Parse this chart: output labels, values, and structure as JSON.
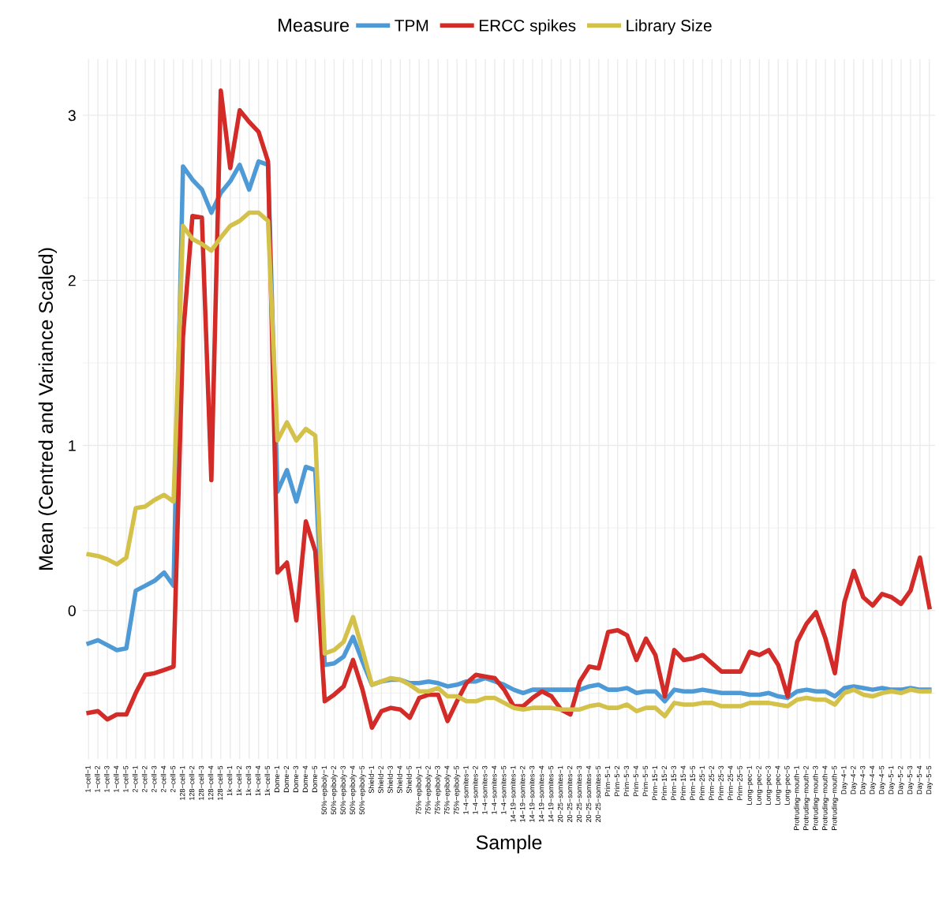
{
  "chart_data": {
    "type": "line",
    "xlabel": "Sample",
    "ylabel": "Mean (Centred and Variance Scaled)",
    "legend_title": "Measure",
    "categories": [
      "1−cell−1",
      "1−cell−2",
      "1−cell−3",
      "1−cell−4",
      "1−cell−5",
      "2−cell−1",
      "2−cell−2",
      "2−cell−3",
      "2−cell−4",
      "2−cell−5",
      "128−cell−1",
      "128−cell−2",
      "128−cell−3",
      "128−cell−4",
      "128−cell−5",
      "1k−cell−1",
      "1k−cell−2",
      "1k−cell−3",
      "1k−cell−4",
      "1k−cell−5",
      "Dome−1",
      "Dome−2",
      "Dome−3",
      "Dome−4",
      "Dome−5",
      "50%−epiboly−1",
      "50%−epiboly−2",
      "50%−epiboly−3",
      "50%−epiboly−4",
      "50%−epiboly−5",
      "Shield−1",
      "Shield−2",
      "Shield−3",
      "Shield−4",
      "Shield−5",
      "75%−epiboly−1",
      "75%−epiboly−2",
      "75%−epiboly−3",
      "75%−epiboly−4",
      "75%−epiboly−5",
      "1−4−somites−1",
      "1−4−somites−2",
      "1−4−somites−3",
      "1−4−somites−4",
      "1−4−somites−5",
      "14−19−somites−1",
      "14−19−somites−2",
      "14−19−somites−3",
      "14−19−somites−4",
      "14−19−somites−5",
      "20−25−somites−1",
      "20−25−somites−2",
      "20−25−somites−3",
      "20−25−somites−4",
      "20−25−somites−5",
      "Prim−5−1",
      "Prim−5−2",
      "Prim−5−3",
      "Prim−5−4",
      "Prim−5−5",
      "Prim−15−1",
      "Prim−15−2",
      "Prim−15−3",
      "Prim−15−4",
      "Prim−15−5",
      "Prim−25−1",
      "Prim−25−2",
      "Prim−25−3",
      "Prim−25−4",
      "Prim−25−5",
      "Long−pec−1",
      "Long−pec−2",
      "Long−pec−3",
      "Long−pec−4",
      "Long−pec−5",
      "Protruding−mouth−1",
      "Protruding−mouth−2",
      "Protruding−mouth−3",
      "Protruding−mouth−4",
      "Protruding−mouth−5",
      "Day−4−1",
      "Day−4−2",
      "Day−4−3",
      "Day−4−4",
      "Day−4−5",
      "Day−5−1",
      "Day−5−2",
      "Day−5−3",
      "Day−5−4",
      "Day−5−5"
    ],
    "series": [
      {
        "name": "TPM",
        "color": "#4e9ad6",
        "values": [
          -0.2,
          -0.18,
          -0.21,
          -0.24,
          -0.23,
          0.12,
          0.15,
          0.18,
          0.23,
          0.15,
          2.69,
          2.61,
          2.55,
          2.41,
          2.53,
          2.6,
          2.7,
          2.55,
          2.72,
          2.7,
          0.72,
          0.85,
          0.66,
          0.87,
          0.85,
          -0.33,
          -0.32,
          -0.28,
          -0.16,
          -0.31,
          -0.45,
          -0.43,
          -0.42,
          -0.42,
          -0.44,
          -0.44,
          -0.43,
          -0.44,
          -0.46,
          -0.45,
          -0.43,
          -0.43,
          -0.41,
          -0.43,
          -0.45,
          -0.48,
          -0.5,
          -0.48,
          -0.48,
          -0.48,
          -0.48,
          -0.48,
          -0.48,
          -0.46,
          -0.45,
          -0.48,
          -0.48,
          -0.47,
          -0.5,
          -0.49,
          -0.49,
          -0.55,
          -0.48,
          -0.49,
          -0.49,
          -0.48,
          -0.49,
          -0.5,
          -0.5,
          -0.5,
          -0.51,
          -0.51,
          -0.5,
          -0.52,
          -0.53,
          -0.49,
          -0.48,
          -0.49,
          -0.49,
          -0.52,
          -0.47,
          -0.46,
          -0.47,
          -0.48,
          -0.47,
          -0.48,
          -0.48,
          -0.47,
          -0.48,
          -0.48
        ]
      },
      {
        "name": "ERCC spikes",
        "color": "#d32b27",
        "values": [
          -0.62,
          -0.61,
          -0.66,
          -0.63,
          -0.63,
          -0.5,
          -0.39,
          -0.38,
          -0.36,
          -0.34,
          1.66,
          2.39,
          2.38,
          0.79,
          3.15,
          2.68,
          3.03,
          2.96,
          2.9,
          2.72,
          0.23,
          0.29,
          -0.06,
          0.54,
          0.36,
          -0.55,
          -0.51,
          -0.46,
          -0.3,
          -0.48,
          -0.71,
          -0.61,
          -0.59,
          -0.6,
          -0.65,
          -0.53,
          -0.51,
          -0.51,
          -0.67,
          -0.55,
          -0.44,
          -0.39,
          -0.4,
          -0.41,
          -0.48,
          -0.58,
          -0.58,
          -0.53,
          -0.49,
          -0.52,
          -0.6,
          -0.63,
          -0.43,
          -0.34,
          -0.35,
          -0.13,
          -0.12,
          -0.15,
          -0.3,
          -0.17,
          -0.27,
          -0.52,
          -0.24,
          -0.3,
          -0.29,
          -0.27,
          -0.32,
          -0.37,
          -0.37,
          -0.37,
          -0.25,
          -0.27,
          -0.24,
          -0.33,
          -0.52,
          -0.19,
          -0.08,
          -0.01,
          -0.17,
          -0.38,
          0.05,
          0.24,
          0.08,
          0.03,
          0.1,
          0.08,
          0.04,
          0.12,
          0.32,
          0.02
        ]
      },
      {
        "name": "Library Size",
        "color": "#d4c14a",
        "values": [
          0.34,
          0.33,
          0.31,
          0.28,
          0.32,
          0.62,
          0.63,
          0.67,
          0.7,
          0.66,
          2.33,
          2.25,
          2.22,
          2.18,
          2.26,
          2.33,
          2.36,
          2.41,
          2.41,
          2.36,
          1.03,
          1.14,
          1.03,
          1.1,
          1.06,
          -0.26,
          -0.24,
          -0.19,
          -0.04,
          -0.24,
          -0.45,
          -0.43,
          -0.41,
          -0.42,
          -0.45,
          -0.49,
          -0.49,
          -0.47,
          -0.52,
          -0.52,
          -0.55,
          -0.55,
          -0.53,
          -0.53,
          -0.56,
          -0.59,
          -0.6,
          -0.59,
          -0.59,
          -0.59,
          -0.6,
          -0.6,
          -0.6,
          -0.58,
          -0.57,
          -0.59,
          -0.59,
          -0.57,
          -0.61,
          -0.59,
          -0.59,
          -0.64,
          -0.56,
          -0.57,
          -0.57,
          -0.56,
          -0.56,
          -0.58,
          -0.58,
          -0.58,
          -0.56,
          -0.56,
          -0.56,
          -0.57,
          -0.58,
          -0.54,
          -0.53,
          -0.54,
          -0.54,
          -0.57,
          -0.5,
          -0.48,
          -0.51,
          -0.52,
          -0.5,
          -0.49,
          -0.5,
          -0.48,
          -0.49,
          -0.49
        ]
      }
    ],
    "ylim": [
      -0.9,
      3.34
    ],
    "yticks": [
      0,
      1,
      2,
      3
    ],
    "grid": true,
    "legend": "top",
    "marker": "none",
    "line_style": "solid"
  }
}
